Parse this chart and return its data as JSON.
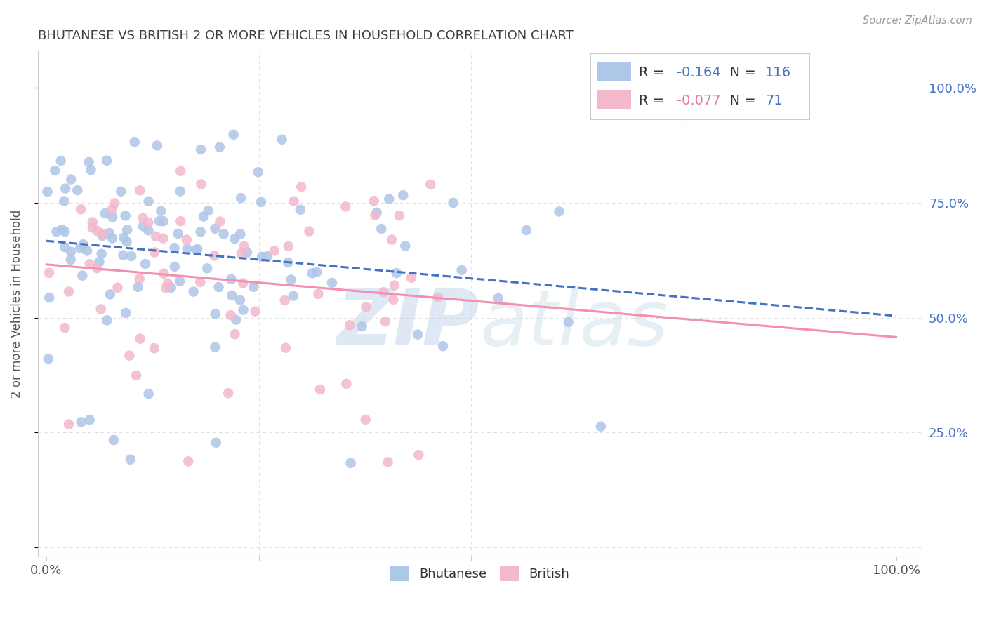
{
  "title": "BHUTANESE VS BRITISH 2 OR MORE VEHICLES IN HOUSEHOLD CORRELATION CHART",
  "source": "Source: ZipAtlas.com",
  "ylabel": "2 or more Vehicles in Household",
  "ytick_values": [
    0.0,
    0.25,
    0.5,
    0.75,
    1.0
  ],
  "ytick_labels": [
    "",
    "25.0%",
    "50.0%",
    "75.0%",
    "100.0%"
  ],
  "xtick_labels": [
    "0.0%",
    "",
    "",
    "",
    "100.0%"
  ],
  "xtick_values": [
    0.0,
    0.25,
    0.5,
    0.75,
    1.0
  ],
  "xlim": [
    -0.01,
    1.03
  ],
  "ylim": [
    -0.02,
    1.08
  ],
  "legend_r_bhutanese": "-0.164",
  "legend_n_bhutanese": "116",
  "legend_r_british": "-0.077",
  "legend_n_british": "71",
  "bhutanese_color": "#aec6e8",
  "british_color": "#f2b8cc",
  "bhutanese_line_color": "#4472c4",
  "british_line_color": "#f48fb1",
  "r_value_color_blue": "#4472c4",
  "r_value_color_pink": "#e8769a",
  "background_color": "#ffffff",
  "grid_color": "#e0e0e0",
  "title_color": "#404040",
  "source_color": "#999999",
  "watermark_zip_color": "#c5d8ee",
  "watermark_atlas_color": "#c8dce8",
  "right_tick_color": "#4472c4",
  "bhutanese_seed": 2023,
  "british_seed": 2024
}
